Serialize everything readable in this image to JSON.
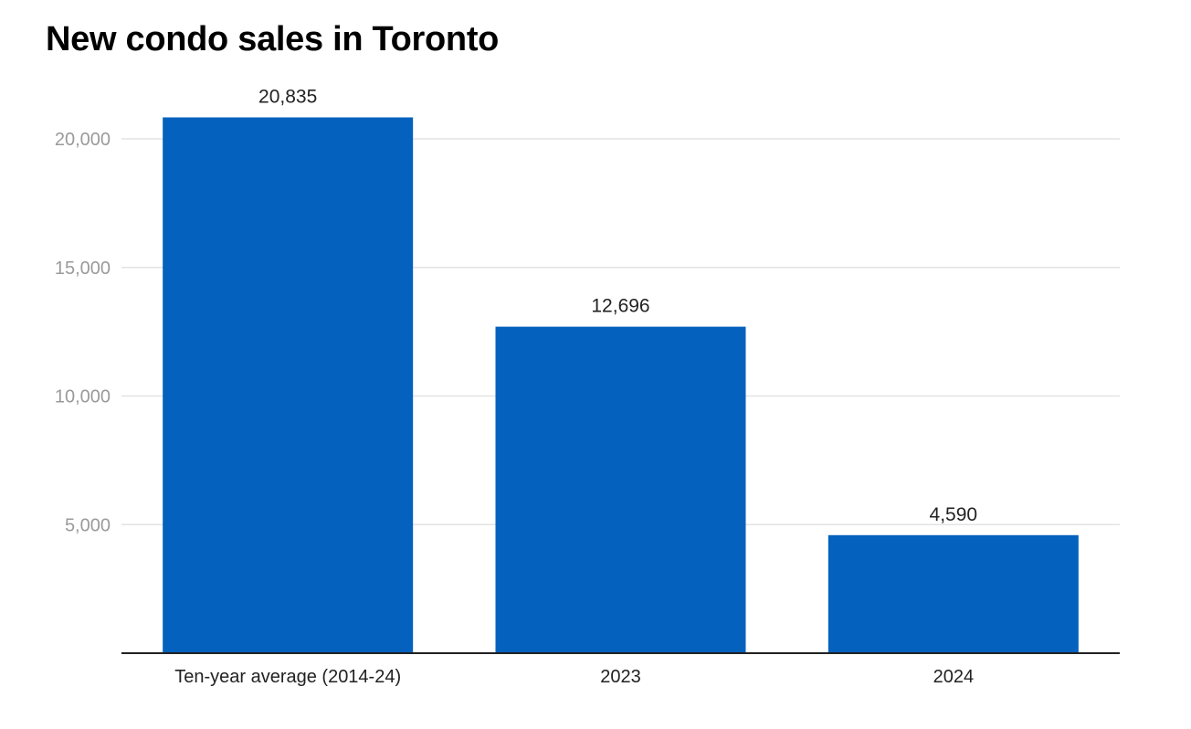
{
  "chart_data": {
    "type": "bar",
    "title": "New condo sales in Toronto",
    "xlabel": "",
    "ylabel": "",
    "categories": [
      "Ten-year average (2014-24)",
      "2023",
      "2024"
    ],
    "values": [
      20835,
      12696,
      4590
    ],
    "value_labels": [
      "20,835",
      "12,696",
      "4,590"
    ],
    "y_ticks": [
      5000,
      10000,
      15000,
      20000
    ],
    "y_tick_labels": [
      "5,000",
      "10,000",
      "15,000",
      "20,000"
    ],
    "ylim": [
      0,
      20000
    ],
    "grid": true,
    "legend": "none",
    "bar_color": "#0461bd",
    "grid_color": "#e3e3e3",
    "axis_color": "#222222"
  }
}
